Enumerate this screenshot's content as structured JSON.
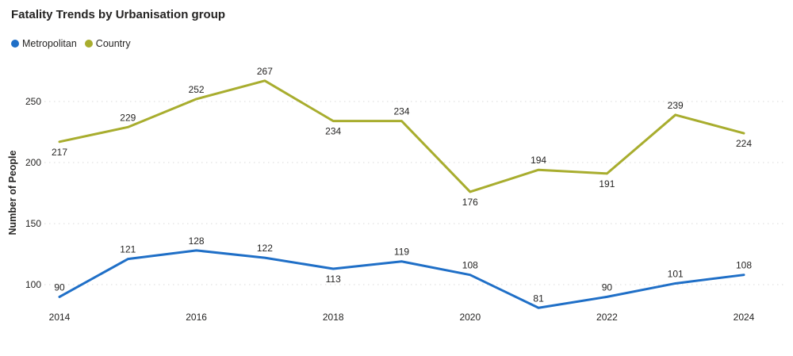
{
  "header": {
    "title": "Fatality Trends by Urbanisation group"
  },
  "legend": {
    "items": [
      {
        "label": "Metropolitan",
        "color": "#1F6FC7"
      },
      {
        "label": "Country",
        "color": "#A8AD2E"
      }
    ]
  },
  "chart_data": {
    "type": "line",
    "title": "Fatality Trends by Urbanisation group",
    "x": [
      2014,
      2015,
      2016,
      2017,
      2018,
      2019,
      2020,
      2021,
      2022,
      2023,
      2024
    ],
    "x_tick_labels": [
      "2014",
      "2016",
      "2018",
      "2020",
      "2022",
      "2024"
    ],
    "xlabel": "",
    "ylabel": "Number of People",
    "y_ticks": [
      100,
      150,
      200,
      250
    ],
    "ylim": [
      75,
      285
    ],
    "grid": "horizontal-dotted",
    "legend_position": "top-left",
    "series": [
      {
        "name": "Metropolitan",
        "color": "#1F6FC7",
        "values": [
          90,
          121,
          128,
          122,
          113,
          119,
          108,
          81,
          90,
          101,
          108
        ],
        "label_positions": [
          "above",
          "above",
          "above",
          "above",
          "below",
          "above",
          "above",
          "above",
          "above",
          "above",
          "above"
        ]
      },
      {
        "name": "Country",
        "color": "#A8AD2E",
        "values": [
          217,
          229,
          252,
          267,
          234,
          234,
          176,
          194,
          191,
          239,
          224
        ],
        "label_positions": [
          "below",
          "above",
          "above",
          "above",
          "below",
          "above",
          "below",
          "above",
          "below",
          "above",
          "below"
        ]
      }
    ],
    "colors": {
      "text": "#252423",
      "gridline": "#E1E1E1"
    }
  }
}
